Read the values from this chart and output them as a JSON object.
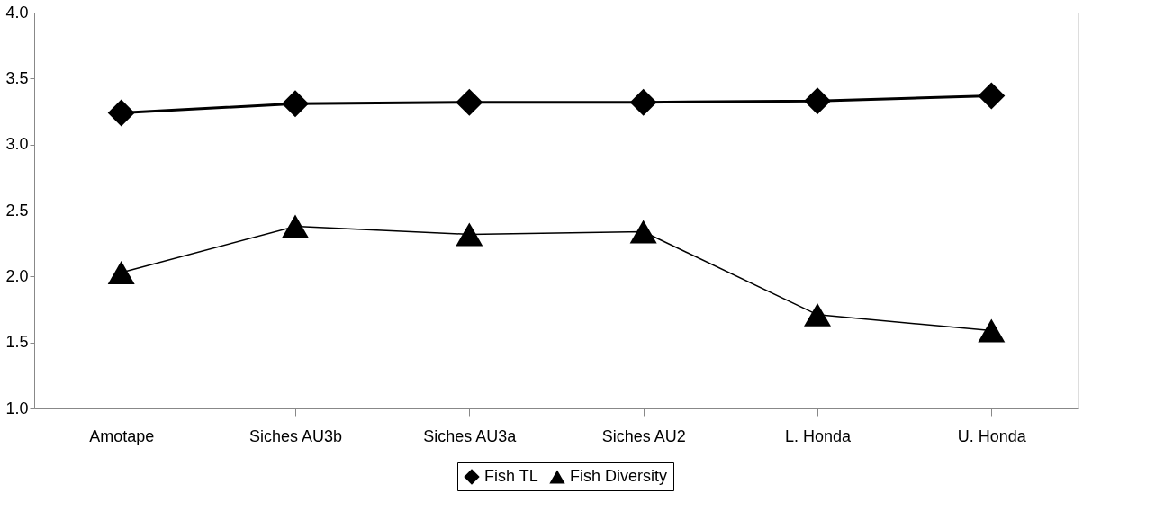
{
  "chart_data": {
    "type": "line",
    "categories": [
      "Amotape",
      "Siches AU3b",
      "Siches AU3a",
      "Siches AU2",
      "L. Honda",
      "U. Honda"
    ],
    "series": [
      {
        "name": "Fish TL",
        "color": "#000000",
        "marker": "diamond",
        "values": [
          3.24,
          3.31,
          3.32,
          3.32,
          3.33,
          3.37
        ]
      },
      {
        "name": "Fish Diversity",
        "color": "#000000",
        "marker": "triangle",
        "values": [
          2.03,
          2.38,
          2.32,
          2.34,
          1.71,
          1.59
        ]
      }
    ],
    "ylim": [
      1.0,
      4.0
    ],
    "yticks": [
      {
        "value": 1,
        "label": "1.0"
      },
      {
        "value": 1.5,
        "label": "1.5"
      },
      {
        "value": 2,
        "label": "2.0"
      },
      {
        "value": 2.5,
        "label": "2.5"
      },
      {
        "value": 3,
        "label": "3.0"
      },
      {
        "value": 3.5,
        "label": "3.5"
      },
      {
        "value": 4,
        "label": "4.0"
      }
    ],
    "grid": false,
    "legend": "bottom",
    "line_style": "solid"
  }
}
